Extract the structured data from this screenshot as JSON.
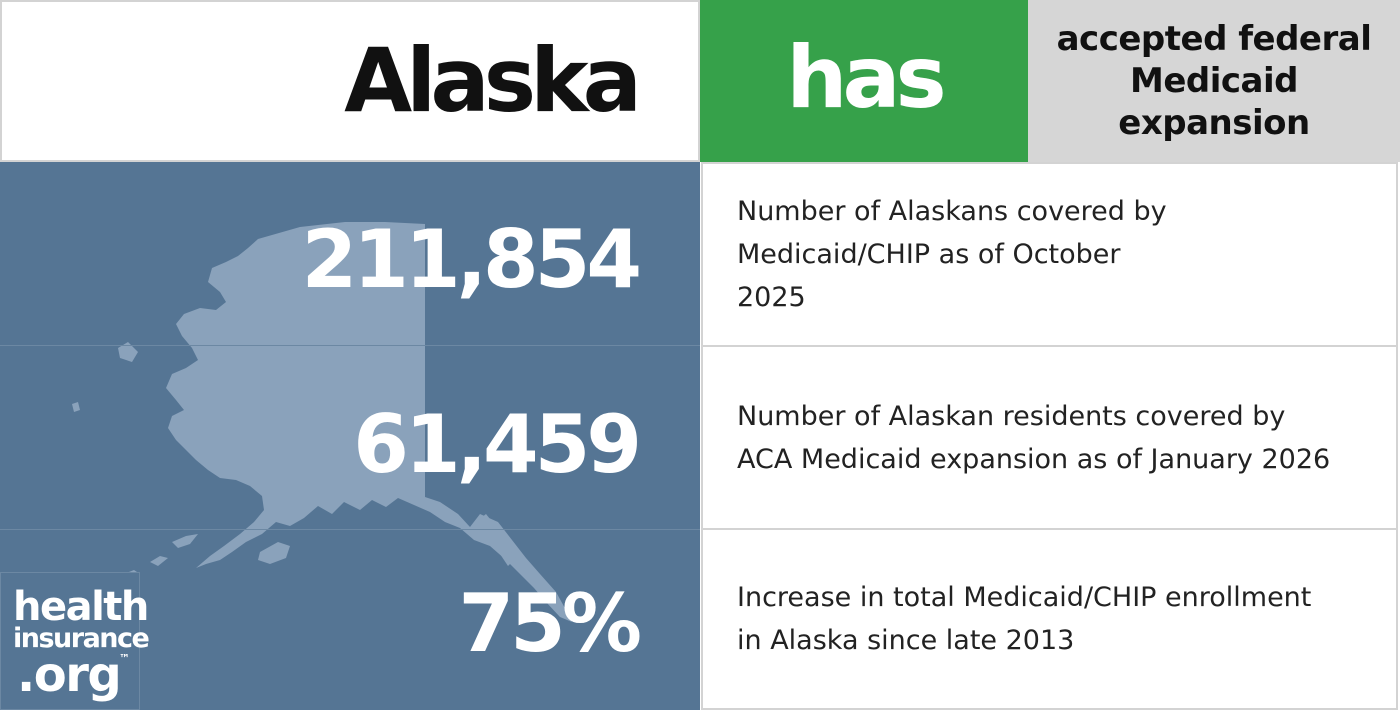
{
  "header": {
    "state": "Alaska",
    "status_word": "has",
    "status_description": "accepted federal Medicaid expansion"
  },
  "stats": [
    {
      "value": "211,854",
      "description": "Number of Alaskans covered by Medicaid/CHIP as of October 2025"
    },
    {
      "value": "61,459",
      "description": "Number of Alaskan residents covered by ACA Medicaid expansion as of January 2026"
    },
    {
      "value": "75%",
      "description": "Increase in total Medicaid/CHIP enrollment in Alaska since late 2013"
    }
  ],
  "logo": {
    "line1": "health",
    "line2": "insurance",
    "line3": ".org",
    "trademark": "™"
  },
  "colors": {
    "status_green": "#36a14a",
    "panel_blue": "#557594",
    "map_fill": "#8aa2bb",
    "header_gray": "#d6d6d6"
  }
}
